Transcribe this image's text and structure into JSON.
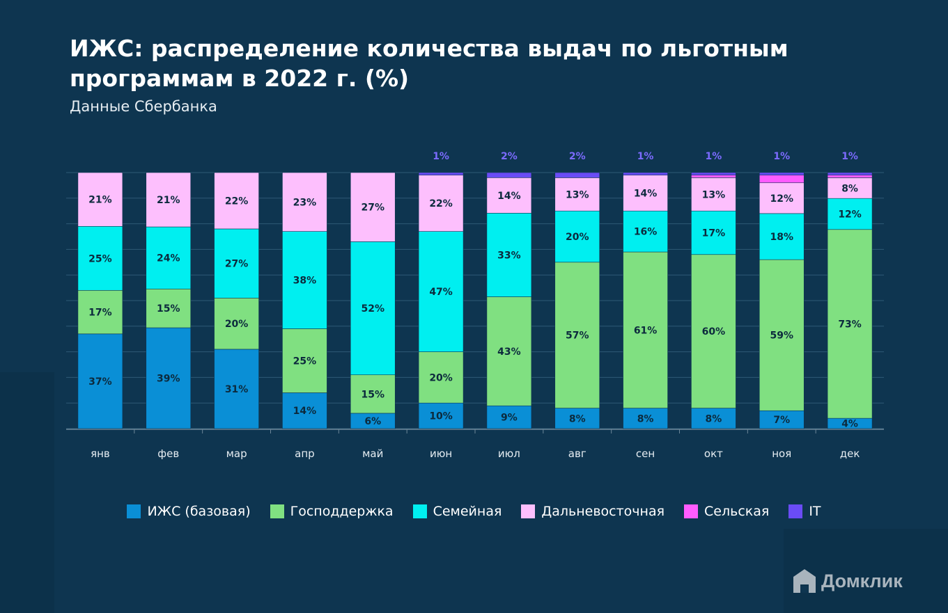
{
  "header": {
    "title": "ИЖС: распределение количества выдач по льготным программам в 2022 г. (%)",
    "subtitle": "Данные Сбербанка"
  },
  "brand": {
    "name": "Домклик"
  },
  "colors": {
    "background": "#0e3550",
    "izhs": "#0a8fd6",
    "gos": "#80e081",
    "sem": "#00eff0",
    "dv": "#fdbffd",
    "sel": "#ff5cff",
    "it": "#6a4cf5",
    "label_dark": "#0c2a3d",
    "label_top": "#7c6bff"
  },
  "chart_data": {
    "type": "bar",
    "stacked": true,
    "title": "ИЖС: распределение количества выдач по льготным программам в 2022 г. (%)",
    "subtitle": "Данные Сбербанка",
    "xlabel": "",
    "ylabel": "",
    "ylim": [
      0,
      100
    ],
    "grid": true,
    "legend_position": "bottom",
    "categories": [
      "янв",
      "фев",
      "мар",
      "апр",
      "май",
      "июн",
      "июл",
      "авг",
      "сен",
      "окт",
      "ноя",
      "дек"
    ],
    "series": [
      {
        "key": "izhs",
        "name": "ИЖС (базовая)",
        "values": [
          37,
          39,
          31,
          14,
          6,
          10,
          9,
          8,
          8,
          8,
          7,
          4
        ]
      },
      {
        "key": "gos",
        "name": "Господдержка",
        "values": [
          17,
          15,
          20,
          25,
          15,
          20,
          43,
          57,
          61,
          60,
          59,
          73
        ]
      },
      {
        "key": "sem",
        "name": "Семейная",
        "values": [
          25,
          24,
          27,
          38,
          52,
          47,
          33,
          20,
          16,
          17,
          18,
          12
        ]
      },
      {
        "key": "dv",
        "name": "Дальневосточная",
        "values": [
          21,
          21,
          22,
          23,
          27,
          22,
          14,
          13,
          14,
          13,
          12,
          8
        ]
      },
      {
        "key": "sel",
        "name": "Сельская",
        "values": [
          0,
          0,
          0,
          0,
          0,
          0,
          0,
          0,
          0,
          1,
          3,
          1
        ]
      },
      {
        "key": "it",
        "name": "IT",
        "values": [
          0,
          0,
          0,
          0,
          0,
          1,
          2,
          2,
          1,
          1,
          1,
          1
        ]
      }
    ],
    "top_labels": [
      "",
      "",
      "",
      "",
      "",
      "1%",
      "2%",
      "2%",
      "1%",
      "1%",
      "1%",
      "1%"
    ]
  }
}
